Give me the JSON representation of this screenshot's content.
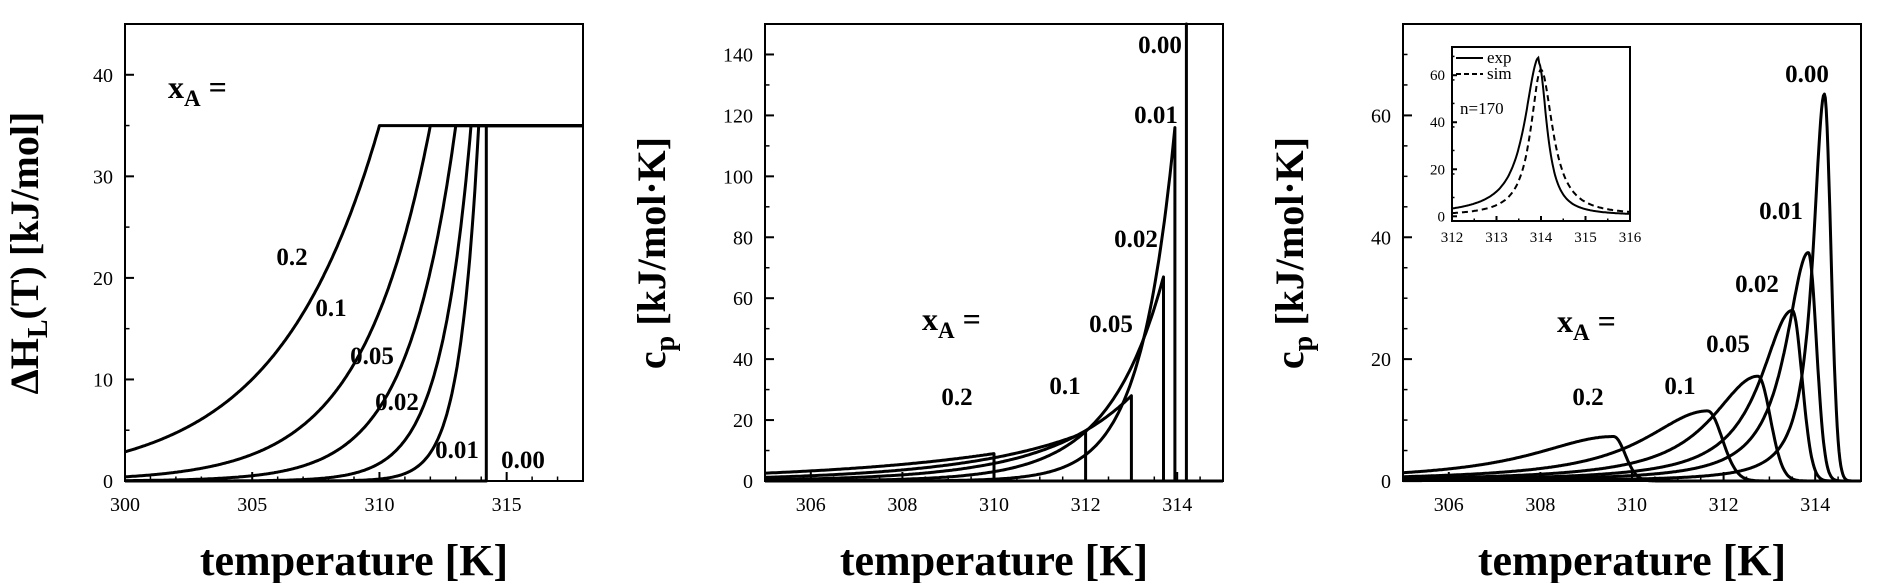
{
  "chart_data": [
    {
      "type": "line",
      "panel": "left",
      "xlabel": "temperature [K]",
      "ylabel": "ΔH_L(T) [kJ/mol]",
      "ylabel_parts": {
        "pre": "ΔH",
        "sub": "L",
        "post": "(T) [kJ/mol]"
      },
      "xlim": [
        300,
        318
      ],
      "ylim": [
        0,
        45
      ],
      "xticks": [
        300,
        305,
        310,
        315
      ],
      "yticks": [
        0,
        10,
        20,
        30,
        40
      ],
      "annotation": {
        "pre": "x",
        "sub": "A",
        "post": " ="
      },
      "series": [
        {
          "name": "0.2",
          "Tm": 310.0,
          "H0": 35,
          "tau": 4.0,
          "label": "0.2"
        },
        {
          "name": "0.1",
          "Tm": 312.0,
          "H0": 35,
          "tau": 2.7,
          "label": "0.1"
        },
        {
          "name": "0.05",
          "Tm": 313.0,
          "H0": 35,
          "tau": 1.9,
          "label": "0.05"
        },
        {
          "name": "0.02",
          "Tm": 313.6,
          "H0": 35,
          "tau": 1.2,
          "label": "0.02"
        },
        {
          "name": "0.01",
          "Tm": 313.9,
          "H0": 35,
          "tau": 0.75,
          "label": "0.01"
        },
        {
          "name": "0.00",
          "Tm": 314.2,
          "H0": 35,
          "tau": 0.0,
          "label": "0.00"
        }
      ]
    },
    {
      "type": "line",
      "panel": "middle",
      "xlabel": "temperature [K]",
      "ylabel": "c_p [kJ/mol·K]",
      "ylabel_parts": {
        "pre": "c",
        "sub": "p",
        "post": " [kJ/mol·K]"
      },
      "xlim": [
        305,
        315
      ],
      "ylim": [
        0,
        150
      ],
      "xticks": [
        306,
        308,
        310,
        312,
        314
      ],
      "yticks": [
        0,
        20,
        40,
        60,
        80,
        100,
        120,
        140
      ],
      "annotation": {
        "pre": "x",
        "sub": "A",
        "post": " ="
      },
      "series": [
        {
          "name": "0.2",
          "Tm": 310.0,
          "peak": 9,
          "tau": 4.0,
          "label": "0.2"
        },
        {
          "name": "0.1",
          "Tm": 312.0,
          "peak": 16,
          "tau": 2.7,
          "label": "0.1"
        },
        {
          "name": "0.05",
          "Tm": 313.0,
          "peak": 28,
          "tau": 1.9,
          "label": "0.05"
        },
        {
          "name": "0.02",
          "Tm": 313.7,
          "peak": 67,
          "tau": 1.2,
          "label": "0.02"
        },
        {
          "name": "0.01",
          "Tm": 313.95,
          "peak": 116,
          "tau": 0.75,
          "label": "0.01"
        },
        {
          "name": "0.00",
          "Tm": 314.2,
          "peak": 150,
          "tau": 0.0,
          "label": "0.00"
        }
      ]
    },
    {
      "type": "line",
      "panel": "right",
      "xlabel": "temperature [K]",
      "ylabel": "c_p [kJ/mol·K]",
      "ylabel_parts": {
        "pre": "c",
        "sub": "p",
        "post": " [kJ/mol·K]"
      },
      "xlim": [
        305,
        315
      ],
      "ylim": [
        0,
        75
      ],
      "xticks": [
        306,
        308,
        310,
        312,
        314
      ],
      "yticks": [
        0,
        20,
        40,
        60
      ],
      "annotation": {
        "pre": "x",
        "sub": "A",
        "post": " ="
      },
      "series": [
        {
          "name": "0.2",
          "Tm": 309.6,
          "peak": 7.3,
          "wl": 2.2,
          "wr": 0.35,
          "label": "0.2"
        },
        {
          "name": "0.1",
          "Tm": 311.65,
          "peak": 11.5,
          "wl": 1.7,
          "wr": 0.45,
          "label": "0.1"
        },
        {
          "name": "0.05",
          "Tm": 312.75,
          "peak": 17.2,
          "wl": 1.25,
          "wr": 0.38,
          "label": "0.05"
        },
        {
          "name": "0.02",
          "Tm": 313.5,
          "peak": 28,
          "wl": 0.85,
          "wr": 0.3,
          "label": "0.02"
        },
        {
          "name": "0.01",
          "Tm": 313.85,
          "peak": 37.5,
          "wl": 0.6,
          "wr": 0.25,
          "label": "0.01"
        },
        {
          "name": "0.00",
          "Tm": 314.2,
          "peak": 63.5,
          "wl": 0.3,
          "wr": 0.2,
          "label": "0.00"
        }
      ],
      "inset": {
        "type": "line",
        "xlim": [
          312,
          316
        ],
        "ylim": [
          -2,
          72
        ],
        "xticks": [
          312,
          313,
          314,
          315,
          316
        ],
        "yticks": [
          0,
          20,
          40,
          60
        ],
        "text": "n=170",
        "legend": [
          {
            "name": "exp",
            "style": "solid"
          },
          {
            "name": "sim",
            "style": "dashed"
          }
        ],
        "series": [
          {
            "name": "exp",
            "Tm": 313.95,
            "peak": 65,
            "wl": 0.38,
            "wr": 0.22,
            "base": 2.5,
            "slope": 0.25
          },
          {
            "name": "sim",
            "Tm": 314.0,
            "peak": 62,
            "wl": 0.28,
            "wr": 0.32,
            "base": 0.4,
            "slope": 0.0
          }
        ]
      }
    }
  ]
}
